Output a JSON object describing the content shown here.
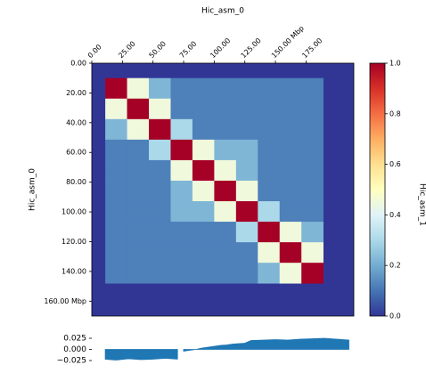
{
  "chart_data": {
    "type": "heatmap",
    "title": "Hic_asm_0",
    "y_label": "Hic_asm_0",
    "colorbar_label": "Hic_asm_1",
    "xlim": [
      0,
      214
    ],
    "ylim": [
      0,
      170
    ],
    "xticks": [
      {
        "value": 0,
        "label": "0.00"
      },
      {
        "value": 25,
        "label": "25.00"
      },
      {
        "value": 50,
        "label": "50.00"
      },
      {
        "value": 75,
        "label": "75.00"
      },
      {
        "value": 100,
        "label": "100.00"
      },
      {
        "value": 125,
        "label": "125.00"
      },
      {
        "value": 150,
        "label": "150.00  Mbp"
      },
      {
        "value": 175,
        "label": "175.00"
      }
    ],
    "yticks": [
      {
        "value": 0,
        "label": "0.00"
      },
      {
        "value": 20,
        "label": "20.00"
      },
      {
        "value": 40,
        "label": "40.00"
      },
      {
        "value": 60,
        "label": "60.00"
      },
      {
        "value": 80,
        "label": "80.00"
      },
      {
        "value": 100,
        "label": "100.00"
      },
      {
        "value": 120,
        "label": "120.00"
      },
      {
        "value": 140,
        "label": "140.00"
      },
      {
        "value": 160,
        "label": "160.00  Mbp"
      }
    ],
    "matrix_x_extent": [
      11,
      189
    ],
    "matrix_y_extent": [
      10,
      148
    ],
    "matrix": [
      [
        1.0,
        0.45,
        0.22,
        0.12,
        0.12,
        0.12,
        0.12,
        0.12,
        0.12,
        0.12
      ],
      [
        0.45,
        1.0,
        0.45,
        0.12,
        0.12,
        0.12,
        0.12,
        0.12,
        0.12,
        0.12
      ],
      [
        0.22,
        0.45,
        1.0,
        0.3,
        0.12,
        0.12,
        0.12,
        0.12,
        0.12,
        0.12
      ],
      [
        0.12,
        0.12,
        0.3,
        1.0,
        0.45,
        0.22,
        0.22,
        0.12,
        0.12,
        0.12
      ],
      [
        0.12,
        0.12,
        0.12,
        0.45,
        1.0,
        0.45,
        0.22,
        0.12,
        0.12,
        0.12
      ],
      [
        0.12,
        0.12,
        0.12,
        0.22,
        0.45,
        1.0,
        0.45,
        0.12,
        0.12,
        0.12
      ],
      [
        0.12,
        0.12,
        0.12,
        0.22,
        0.22,
        0.45,
        1.0,
        0.3,
        0.12,
        0.12
      ],
      [
        0.12,
        0.12,
        0.12,
        0.12,
        0.12,
        0.12,
        0.3,
        1.0,
        0.45,
        0.22
      ],
      [
        0.12,
        0.12,
        0.12,
        0.12,
        0.12,
        0.12,
        0.12,
        0.45,
        1.0,
        0.45
      ],
      [
        0.12,
        0.12,
        0.12,
        0.12,
        0.12,
        0.12,
        0.12,
        0.22,
        0.45,
        1.0
      ]
    ],
    "colormap": [
      "#313695",
      "#4575b4",
      "#74add1",
      "#abd9e9",
      "#e0f3f8",
      "#ffffbf",
      "#fee090",
      "#fdae61",
      "#f46d43",
      "#d73027",
      "#a50026"
    ],
    "clim": [
      0,
      1
    ],
    "cticks": [
      {
        "value": 0,
        "label": "0.0"
      },
      0.2,
      0.4,
      0.6,
      0.8,
      {
        "value": 1,
        "label": "1.0"
      }
    ],
    "track": {
      "type": "area",
      "color": "#1f77b4",
      "x": [
        11,
        20,
        30,
        40,
        50,
        60,
        70,
        72,
        75,
        80,
        85,
        90,
        95,
        100,
        105,
        110,
        115,
        120,
        125,
        130,
        140,
        150,
        160,
        170,
        180,
        190,
        200,
        210
      ],
      "values": [
        -0.022,
        -0.024,
        -0.021,
        -0.023,
        -0.022,
        -0.02,
        -0.022,
        null,
        -0.004,
        -0.002,
        0,
        0.003,
        0.005,
        0.007,
        0.009,
        0.01,
        0.012,
        0.013,
        0.014,
        0.02,
        0.021,
        0.022,
        0.021,
        0.023,
        0.024,
        0.025,
        0.023,
        0.021
      ],
      "ylim": [
        -0.035,
        0.035
      ],
      "yticks": [
        0.025,
        {
          "value": 0,
          "label": "0.000"
        },
        {
          "value": -0.025,
          "label": "−0.025"
        }
      ]
    }
  }
}
